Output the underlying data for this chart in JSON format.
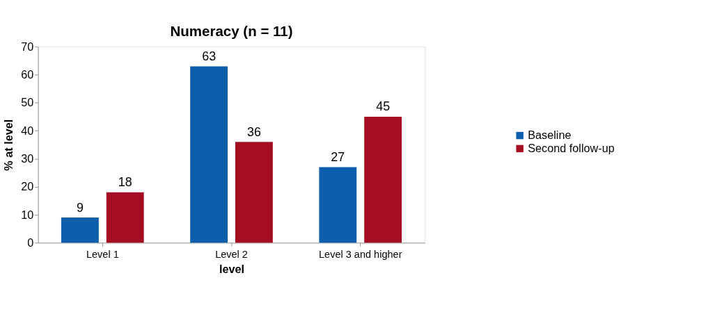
{
  "chart_data": {
    "type": "bar",
    "title": "Numeracy (n = 11)",
    "xlabel": "level",
    "ylabel": "% at level",
    "categories": [
      "Level 1",
      "Level 2",
      "Level 3 and higher"
    ],
    "series": [
      {
        "name": "Baseline",
        "color": "#0d5eab",
        "values": [
          9,
          63,
          27
        ]
      },
      {
        "name": "Second follow-up",
        "color": "#a50d22",
        "values": [
          18,
          36,
          45
        ]
      }
    ],
    "ylim": [
      0,
      70
    ],
    "yticks": [
      0,
      10,
      20,
      30,
      40,
      50,
      60,
      70
    ],
    "grid": false,
    "legend": "right",
    "data_labels": true
  }
}
